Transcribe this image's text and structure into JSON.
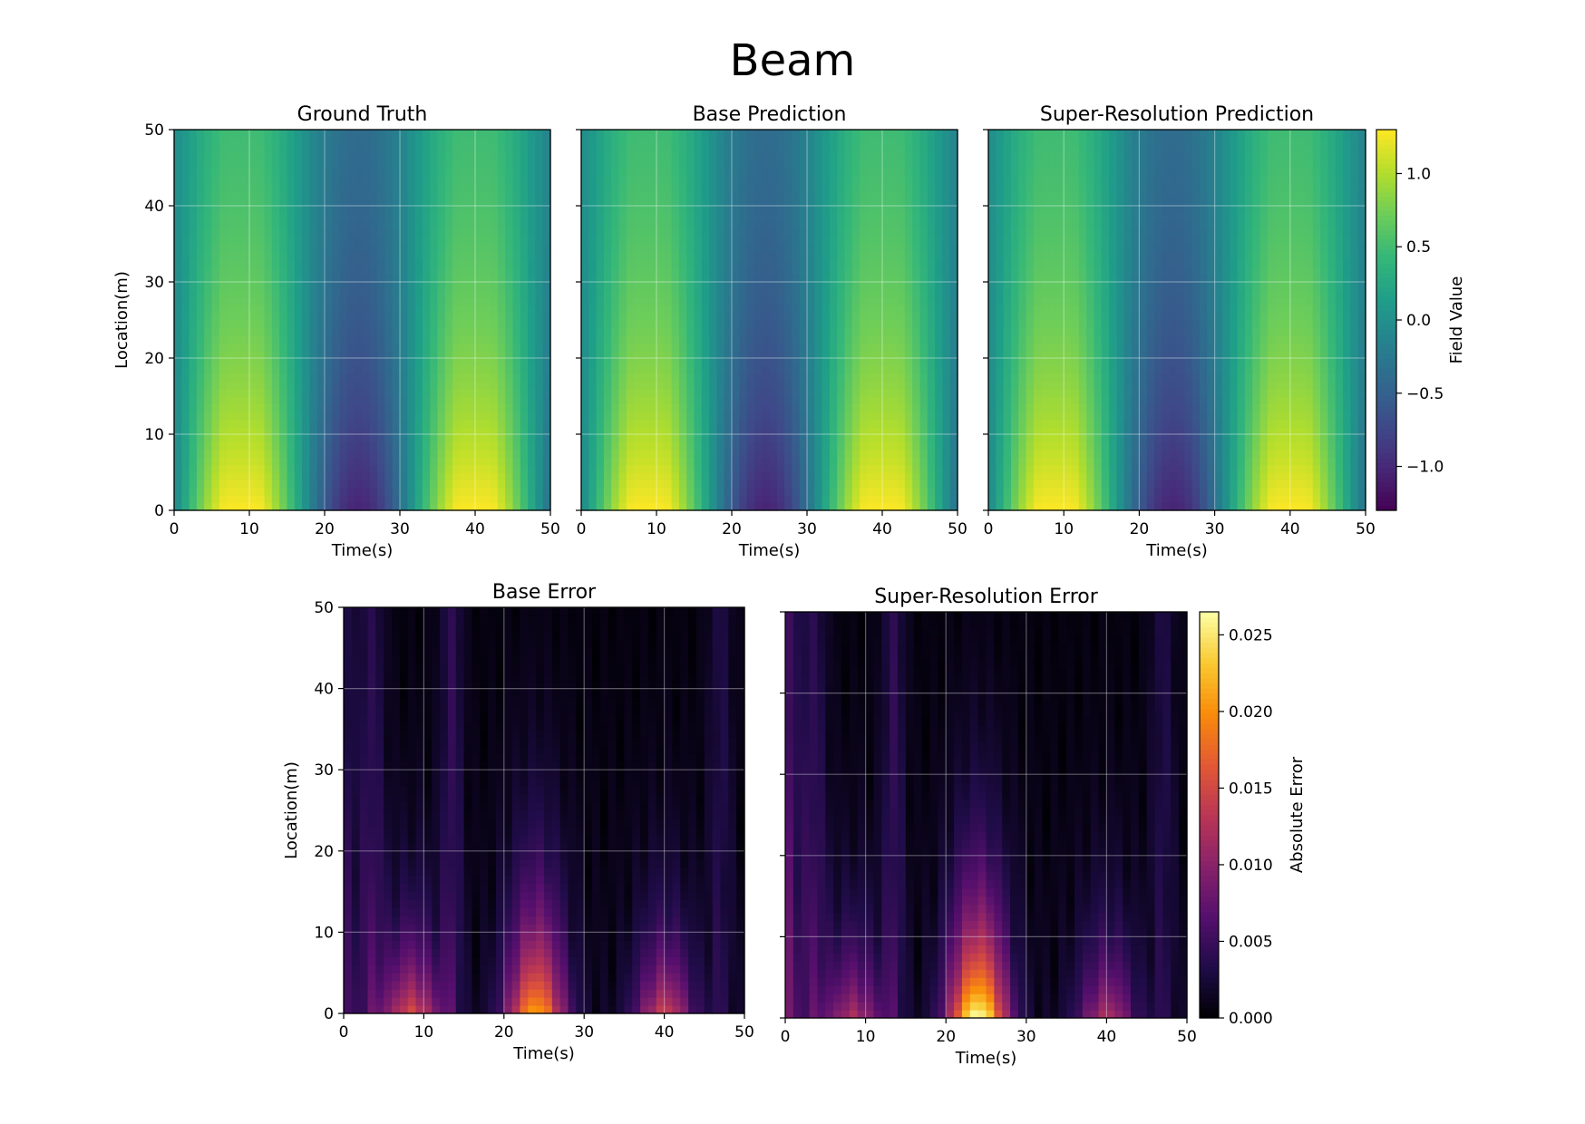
{
  "figure": {
    "title": "Beam"
  },
  "chart_data": [
    {
      "type": "heatmap",
      "title": "Ground Truth",
      "xlabel": "Time(s)",
      "ylabel": "Location(m)",
      "xlim": [
        0,
        50
      ],
      "ylim": [
        0,
        50
      ],
      "xticks": [
        0,
        10,
        20,
        30,
        40,
        50
      ],
      "yticks": [
        0,
        10,
        20,
        30,
        40,
        50
      ],
      "grid": true,
      "colormap": "viridis",
      "value_range": [
        -1.3,
        1.3
      ],
      "time_peaks": [
        9,
        24,
        40
      ],
      "field_peak_values": [
        1.25,
        -1.25,
        1.2
      ]
    },
    {
      "type": "heatmap",
      "title": "Base Prediction",
      "xlabel": "Time(s)",
      "ylabel": "",
      "xlim": [
        0,
        50
      ],
      "ylim": [
        0,
        50
      ],
      "xticks": [
        0,
        10,
        20,
        30,
        40,
        50
      ],
      "yticks": [
        0,
        10,
        20,
        30,
        40,
        50
      ],
      "grid": true,
      "colormap": "viridis",
      "value_range": [
        -1.3,
        1.3
      ]
    },
    {
      "type": "heatmap",
      "title": "Super-Resolution Prediction",
      "xlabel": "Time(s)",
      "ylabel": "",
      "xlim": [
        0,
        50
      ],
      "ylim": [
        0,
        50
      ],
      "xticks": [
        0,
        10,
        20,
        30,
        40,
        50
      ],
      "yticks": [
        0,
        10,
        20,
        30,
        40,
        50
      ],
      "grid": true,
      "colormap": "viridis",
      "value_range": [
        -1.3,
        1.3
      ],
      "colorbar": {
        "label": "Field Value",
        "ticks": [
          1.0,
          0.5,
          0.0,
          -0.5,
          -1.0
        ],
        "tick_labels": [
          "1.0",
          "0.5",
          "0.0",
          "−0.5",
          "−1.0"
        ],
        "range": [
          -1.3,
          1.3
        ]
      }
    },
    {
      "type": "heatmap",
      "title": "Base Error",
      "xlabel": "Time(s)",
      "ylabel": "Location(m)",
      "xlim": [
        0,
        50
      ],
      "ylim": [
        0,
        50
      ],
      "xticks": [
        0,
        10,
        20,
        30,
        40,
        50
      ],
      "yticks": [
        0,
        10,
        20,
        30,
        40,
        50
      ],
      "grid": true,
      "colormap": "inferno",
      "value_range": [
        0,
        0.0265
      ],
      "error_peaks": [
        {
          "t": 8.5,
          "value": 0.014
        },
        {
          "t": 24,
          "value": 0.02
        },
        {
          "t": 40,
          "value": 0.013
        }
      ]
    },
    {
      "type": "heatmap",
      "title": "Super-Resolution Error",
      "xlabel": "Time(s)",
      "ylabel": "",
      "xlim": [
        0,
        50
      ],
      "ylim": [
        0,
        50
      ],
      "xticks": [
        0,
        10,
        20,
        30,
        40,
        50
      ],
      "yticks": [
        0,
        10,
        20,
        30,
        40,
        50
      ],
      "grid": true,
      "colormap": "inferno",
      "value_range": [
        0,
        0.0265
      ],
      "error_peaks": [
        {
          "t": 8.5,
          "value": 0.011
        },
        {
          "t": 24,
          "value": 0.026
        },
        {
          "t": 40,
          "value": 0.011
        }
      ],
      "colorbar": {
        "label": "Absolute Error",
        "ticks": [
          0.025,
          0.02,
          0.015,
          0.01,
          0.005,
          0.0
        ],
        "tick_labels": [
          "0.025",
          "0.020",
          "0.015",
          "0.010",
          "0.005",
          "0.000"
        ],
        "range": [
          0,
          0.0265
        ]
      }
    }
  ]
}
